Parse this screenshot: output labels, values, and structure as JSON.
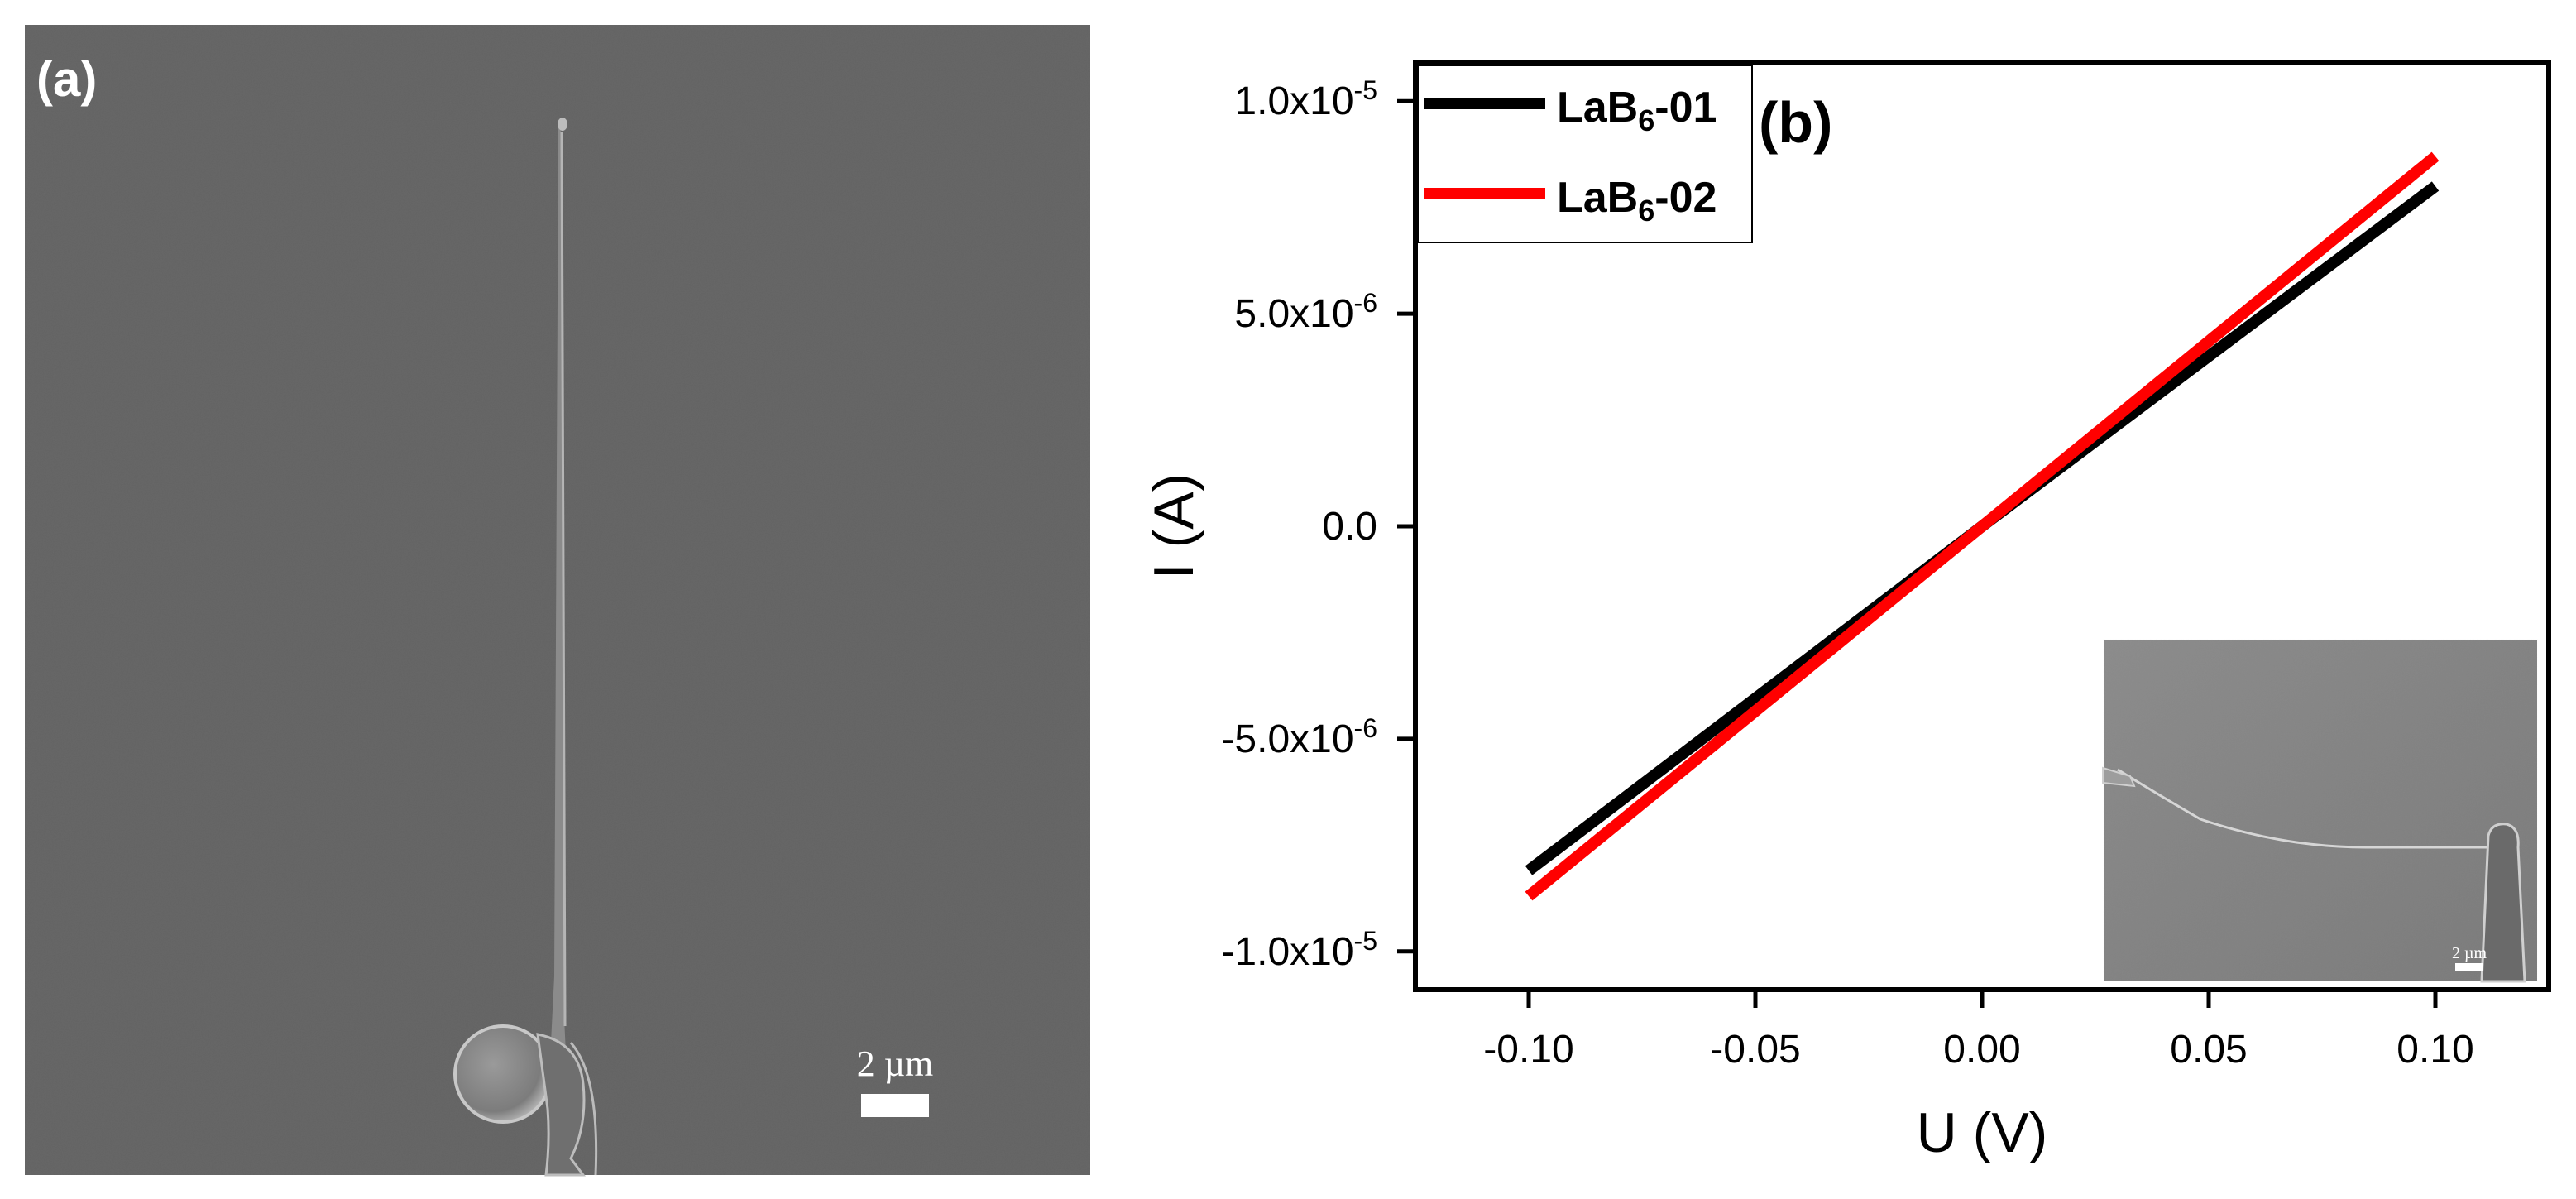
{
  "panel_a": {
    "label": "(a)",
    "scale_bar_label": "2 µm"
  },
  "panel_b": {
    "label": "(b)",
    "inset_scale_label": "2 µm"
  },
  "colors": {
    "sem_background": "#636363",
    "series_01": "#000000",
    "series_02": "#ff0000"
  },
  "chart_data": {
    "type": "line",
    "title": "",
    "xlabel": "U (V)",
    "ylabel": "I (A)",
    "xlim": [
      -0.125,
      0.125
    ],
    "ylim": [
      -1.09e-05,
      1.09e-05
    ],
    "x_ticks": [
      -0.1,
      -0.05,
      0.0,
      0.05,
      0.1
    ],
    "x_tick_labels": [
      "-0.10",
      "-0.05",
      "0.00",
      "0.05",
      "0.10"
    ],
    "y_ticks": [
      -1e-05,
      -5e-06,
      0,
      5e-06,
      1e-05
    ],
    "y_tick_labels": [
      {
        "mantissa": "-1.0x10",
        "exponent": "-5"
      },
      {
        "mantissa": "-5.0x10",
        "exponent": "-6"
      },
      {
        "mantissa": "0.0",
        "exponent": ""
      },
      {
        "mantissa": "5.0x10",
        "exponent": "-6"
      },
      {
        "mantissa": "1.0x10",
        "exponent": "-5"
      }
    ],
    "legend_position": "top-left",
    "series": [
      {
        "name": "LaB6-01",
        "name_base": "LaB",
        "name_sub": "6",
        "name_suffix": "-01",
        "color": "#000000",
        "x": [
          -0.1,
          0.0,
          0.1
        ],
        "y": [
          -8.1e-06,
          0.0,
          8e-06
        ]
      },
      {
        "name": "LaB6-02",
        "name_base": "LaB",
        "name_sub": "6",
        "name_suffix": "-02",
        "color": "#ff0000",
        "x": [
          -0.1,
          0.0,
          0.1
        ],
        "y": [
          -8.7e-06,
          0.0,
          8.7e-06
        ]
      }
    ]
  }
}
